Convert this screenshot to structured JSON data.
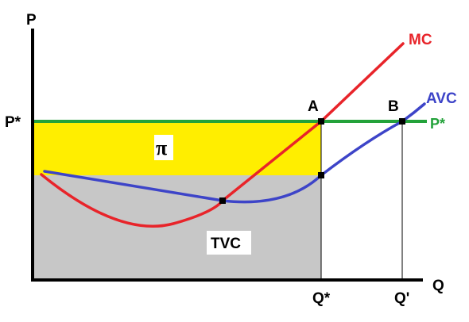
{
  "axes": {
    "y_label": "P",
    "x_label": "Q"
  },
  "price": {
    "left_label": "P*",
    "right_label": "P*"
  },
  "quantities": {
    "q_star": "Q*",
    "q_prime": "Q'"
  },
  "points": {
    "a": "A",
    "b": "B"
  },
  "curves": {
    "mc": "MC",
    "avc": "AVC"
  },
  "regions": {
    "profit": "π",
    "tvc": "TVC"
  },
  "colors": {
    "mc": "#e8242a",
    "avc": "#3d44c8",
    "price_line": "#23a23a",
    "profit_fill": "#ffee00",
    "tvc_fill": "#c7c7c7",
    "axis": "#000000"
  }
}
